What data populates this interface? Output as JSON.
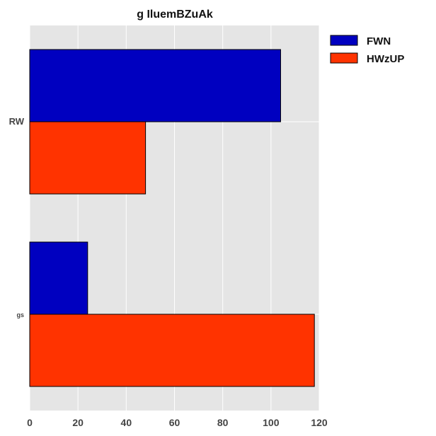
{
  "chart_data": {
    "type": "bar",
    "orientation": "horizontal",
    "title": "g IluemBZuAk",
    "xlabel": "",
    "ylabel": "",
    "categories": [
      "RW",
      "gs"
    ],
    "series": [
      {
        "name": "FWN",
        "values": [
          104,
          24
        ],
        "color": "#0000c0"
      },
      {
        "name": "HWzUP",
        "values": [
          48,
          118
        ],
        "color": "#ff3300"
      }
    ],
    "xlim": [
      0,
      120
    ],
    "xticks": [
      0,
      20,
      40,
      60,
      80,
      100,
      120
    ],
    "grid": true,
    "legend": "top-right outside"
  }
}
